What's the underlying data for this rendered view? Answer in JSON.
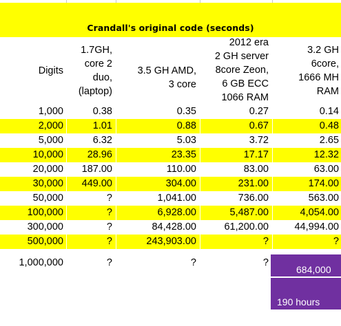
{
  "sheet": {
    "title": "Crandall's original code (seconds)",
    "headers": {
      "digits": "Digits",
      "laptop": [
        "1.7GH,",
        "core 2",
        "duo,",
        "(laptop)"
      ],
      "amd": [
        "3.5 GH AMD,",
        "3 core"
      ],
      "server": [
        "2012 era",
        "2 GH server",
        "8core Zeon,",
        "6 GB ECC",
        "1066 RAM"
      ],
      "sixcore": [
        "3.2 GH",
        "6core,",
        "1666 MH",
        "RAM"
      ]
    },
    "rows": [
      {
        "digits": "1,000",
        "laptop": "0.38",
        "amd": "0.35",
        "server": "0.27",
        "sixcore": "0.14",
        "highlight": false
      },
      {
        "digits": "2,000",
        "laptop": "1.01",
        "amd": "0.88",
        "server": "0.67",
        "sixcore": "0.48",
        "highlight": true
      },
      {
        "digits": "5,000",
        "laptop": "6.32",
        "amd": "5.03",
        "server": "3.72",
        "sixcore": "2.65",
        "highlight": false
      },
      {
        "digits": "10,000",
        "laptop": "28.96",
        "amd": "23.35",
        "server": "17.17",
        "sixcore": "12.32",
        "highlight": true
      },
      {
        "digits": "20,000",
        "laptop": "187.00",
        "amd": "110.00",
        "server": "83.00",
        "sixcore": "63.00",
        "highlight": false
      },
      {
        "digits": "30,000",
        "laptop": "449.00",
        "amd": "304.00",
        "server": "231.00",
        "sixcore": "174.00",
        "highlight": true
      },
      {
        "digits": "50,000",
        "laptop": "?",
        "amd": "1,041.00",
        "server": "736.00",
        "sixcore": "563.00",
        "highlight": false
      },
      {
        "digits": "100,000",
        "laptop": "?",
        "amd": "6,928.00",
        "server": "5,487.00",
        "sixcore": "4,054.00",
        "highlight": true
      },
      {
        "digits": "300,000",
        "laptop": "?",
        "amd": "84,428.00",
        "server": "61,200.00",
        "sixcore": "44,994.00",
        "highlight": false
      },
      {
        "digits": "500,000",
        "laptop": "?",
        "amd": "243,903.00",
        "server": "?",
        "sixcore": "?",
        "highlight": true
      },
      {
        "digits": "1,000,000",
        "laptop": "?",
        "amd": "?",
        "server": "?",
        "sixcore": "684,000",
        "highlight": false
      }
    ],
    "estimate_hours": "190 hours",
    "colors": {
      "highlight": "#ffff00",
      "purple": "#7030a0"
    }
  }
}
